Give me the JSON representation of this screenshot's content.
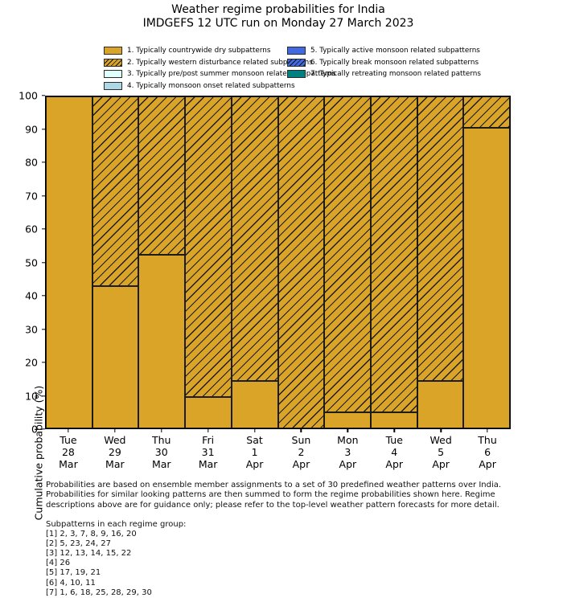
{
  "title": {
    "line1": "Weather regime probabilities for India",
    "line2": "IMDGEFS 12 UTC run on Monday 27 March 2023"
  },
  "legend": {
    "columns": [
      [
        0,
        1,
        2,
        3
      ],
      [
        4,
        5,
        6
      ]
    ],
    "items": [
      {
        "label": "1. Typically countrywide dry subpatterns",
        "fill": "#D9A427",
        "hatch": false
      },
      {
        "label": "2. Typically western disturbance related subpatterns",
        "fill": "#D9A427",
        "hatch": true
      },
      {
        "label": "3. Typically pre/post summer monsoon related subpatterns",
        "fill": "#E0FFFF",
        "hatch": false
      },
      {
        "label": "4. Typically monsoon onset related subpatterns",
        "fill": "#ADD8E6",
        "hatch": false
      },
      {
        "label": "5. Typically active monsoon related subpatterns",
        "fill": "#4169E1",
        "hatch": false
      },
      {
        "label": "6. Typically break monsoon related subpatterns",
        "fill": "#4169E1",
        "hatch": true
      },
      {
        "label": "7. Typically retreating monsoon related patterns",
        "fill": "#008080",
        "hatch": false
      }
    ]
  },
  "chart_data": {
    "type": "bar",
    "stacked": true,
    "title": "Weather regime probabilities for India",
    "subtitle": "IMDGEFS 12 UTC run on Monday 27 March 2023",
    "ylabel": "Cumulative probability (%)",
    "xlabel": "",
    "ylim": [
      0,
      100
    ],
    "y_ticks": [
      0,
      10,
      20,
      30,
      40,
      50,
      60,
      70,
      80,
      90,
      100
    ],
    "grid": false,
    "legend_position": "top",
    "categories": [
      {
        "day": "Tue",
        "date": "28",
        "month": "Mar"
      },
      {
        "day": "Wed",
        "date": "29",
        "month": "Mar"
      },
      {
        "day": "Thu",
        "date": "30",
        "month": "Mar"
      },
      {
        "day": "Fri",
        "date": "31",
        "month": "Mar"
      },
      {
        "day": "Sat",
        "date": "1",
        "month": "Apr"
      },
      {
        "day": "Sun",
        "date": "2",
        "month": "Apr"
      },
      {
        "day": "Mon",
        "date": "3",
        "month": "Apr"
      },
      {
        "day": "Tue",
        "date": "4",
        "month": "Apr"
      },
      {
        "day": "Wed",
        "date": "5",
        "month": "Apr"
      },
      {
        "day": "Thu",
        "date": "6",
        "month": "Apr"
      }
    ],
    "series": [
      {
        "name": "1. Typically countrywide dry subpatterns",
        "style": "solid",
        "color": "#D9A427",
        "values": [
          100,
          42.9,
          52.4,
          9.5,
          14.3,
          0,
          4.8,
          4.8,
          14.3,
          90.5
        ]
      },
      {
        "name": "2. Typically western disturbance related subpatterns",
        "style": "hatched",
        "color": "#D9A427",
        "values": [
          0,
          57.1,
          47.6,
          90.5,
          85.7,
          100,
          95.2,
          95.2,
          85.7,
          9.5
        ]
      }
    ]
  },
  "footnote": {
    "lines": [
      "Probabilities are based on ensemble member assignments to a set of 30 predefined weather patterns over India.",
      "Probabilities for similar looking patterns are then summed to form the regime probabilities shown here. Regime",
      "descriptions above are for guidance only; please refer to the top-level weather pattern forecasts for more detail."
    ]
  },
  "subpatterns": {
    "heading": "Subpatterns in each regime group:",
    "groups": [
      "[1] 2, 3, 7, 8, 9, 16, 20",
      "[2] 5, 23, 24, 27",
      "[3] 12, 13, 14, 15, 22",
      "[4] 26",
      "[5] 17, 19, 21",
      "[6] 4, 10, 11",
      "[7] 1, 6, 18, 25, 28, 29, 30"
    ]
  }
}
